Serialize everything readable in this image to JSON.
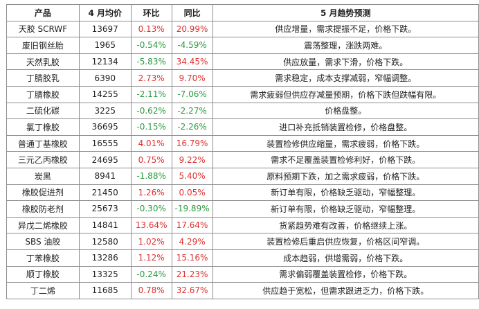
{
  "headers": {
    "product": "产品",
    "price": "4 月均价",
    "mom": "环比",
    "yoy": "同比",
    "forecast": "5 月趋势预测"
  },
  "colors": {
    "up": "#e03030",
    "down": "#2a9a3c"
  },
  "rows": [
    {
      "product": "天胶 SCRWF",
      "price": "13697",
      "mom": "0.13%",
      "yoy": "20.99%",
      "forecast": "供应增量，需求提振不足，价格下跌。"
    },
    {
      "product": "废旧钢丝胎",
      "price": "1965",
      "mom": "-0.54%",
      "yoy": "-4.59%",
      "forecast": "震荡整理，涨跌两难。"
    },
    {
      "product": "天然乳胶",
      "price": "12134",
      "mom": "-5.83%",
      "yoy": "34.45%",
      "forecast": "供应放量，需求下滑，价格下跌。"
    },
    {
      "product": "丁腈胶乳",
      "price": "6390",
      "mom": "2.73%",
      "yoy": "9.70%",
      "forecast": "需求稳定，成本支撑减弱，窄幅调整。"
    },
    {
      "product": "丁腈橡胶",
      "price": "14255",
      "mom": "-2.11%",
      "yoy": "-7.06%",
      "forecast": "需求疲弱但供应存减量预期，价格下跌但跌幅有限。"
    },
    {
      "product": "二硫化碳",
      "price": "3225",
      "mom": "-0.62%",
      "yoy": "-2.27%",
      "forecast": "价格盘整。"
    },
    {
      "product": "氯丁橡胶",
      "price": "36695",
      "mom": "-0.15%",
      "yoy": "-2.26%",
      "forecast": "进口补充抵销装置检修，价格盘整。"
    },
    {
      "product": "普通丁基橡胶",
      "price": "16555",
      "mom": "4.01%",
      "yoy": "16.79%",
      "forecast": "装置检修供应缩量，需求疲弱，价格下跌。"
    },
    {
      "product": "三元乙丙橡胶",
      "price": "24695",
      "mom": "0.75%",
      "yoy": "9.22%",
      "forecast": "需求不足覆盖装置检修利好，价格下跌。"
    },
    {
      "product": "炭黑",
      "price": "8941",
      "mom": "-1.88%",
      "yoy": "5.40%",
      "forecast": "原料预期下跌，加之需求疲弱，价格下跌。"
    },
    {
      "product": "橡胶促进剂",
      "price": "21450",
      "mom": "1.26%",
      "yoy": "0.05%",
      "forecast": "新订单有限，价格缺乏驱动，窄幅整理。"
    },
    {
      "product": "橡胶防老剂",
      "price": "25673",
      "mom": "-0.30%",
      "yoy": "-19.89%",
      "forecast": "新订单有限，价格缺乏驱动，窄幅整理。"
    },
    {
      "product": "异戊二烯橡胶",
      "price": "14841",
      "mom": "13.64%",
      "yoy": "17.64%",
      "forecast": "货紧趋势难有改善，价格继续上涨。"
    },
    {
      "product": "SBS 油胶",
      "price": "12580",
      "mom": "1.02%",
      "yoy": "4.29%",
      "forecast": "装置检修后重启供应恢复，价格区间窄调。"
    },
    {
      "product": "丁苯橡胶",
      "price": "13286",
      "mom": "1.12%",
      "yoy": "15.16%",
      "forecast": "成本趋弱，供增需弱，价格下跌。"
    },
    {
      "product": "顺丁橡胶",
      "price": "13325",
      "mom": "-0.24%",
      "yoy": "21.23%",
      "forecast": "需求偏弱覆盖装置检修，价格下跌。"
    },
    {
      "product": "丁二烯",
      "price": "11685",
      "mom": "0.78%",
      "yoy": "32.67%",
      "forecast": "供应趋于宽松，但需求跟进乏力，价格下跌。"
    }
  ]
}
